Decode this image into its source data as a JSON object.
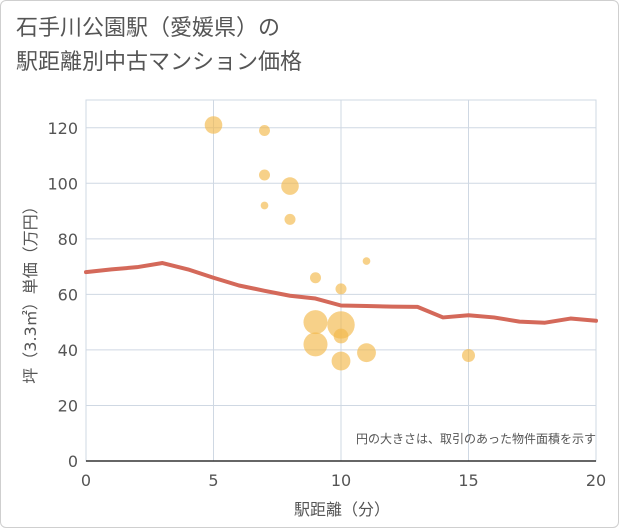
{
  "title_line1": "石手川公園駅（愛媛県）の",
  "title_line2": "駅距離別中古マンション価格",
  "chart_data": {
    "type": "scatter",
    "title": "石手川公園駅（愛媛県）の駅距離別中古マンション価格",
    "xlabel": "駅距離（分）",
    "ylabel": "坪（3.3㎡）単価（万円）",
    "xlim": [
      0,
      20
    ],
    "ylim": [
      0,
      130
    ],
    "xticks": [
      0,
      5,
      10,
      15,
      20
    ],
    "yticks": [
      0,
      20,
      40,
      60,
      80,
      100,
      120
    ],
    "grid": true,
    "note": "円の大きさは、取引のあった物件面積を示す",
    "colors": {
      "bubble": "#f3b94a",
      "line": "#d4695a"
    },
    "bubbles": [
      {
        "x": 5,
        "y": 121,
        "size": 3
      },
      {
        "x": 7,
        "y": 119,
        "size": 1
      },
      {
        "x": 7,
        "y": 103,
        "size": 1
      },
      {
        "x": 7,
        "y": 92,
        "size": 0.4
      },
      {
        "x": 8,
        "y": 99,
        "size": 3
      },
      {
        "x": 8,
        "y": 87,
        "size": 1
      },
      {
        "x": 9,
        "y": 66,
        "size": 1
      },
      {
        "x": 10,
        "y": 62,
        "size": 1
      },
      {
        "x": 11,
        "y": 72,
        "size": 0.4
      },
      {
        "x": 9,
        "y": 50,
        "size": 6
      },
      {
        "x": 10,
        "y": 49,
        "size": 8
      },
      {
        "x": 9,
        "y": 42,
        "size": 6
      },
      {
        "x": 10,
        "y": 45,
        "size": 2
      },
      {
        "x": 10,
        "y": 36,
        "size": 3.5
      },
      {
        "x": 11,
        "y": 39,
        "size": 3.5
      },
      {
        "x": 15,
        "y": 38,
        "size": 1.5
      }
    ],
    "trend_line": {
      "x": [
        0,
        1,
        2,
        3,
        4,
        5,
        6,
        7,
        8,
        9,
        10,
        11,
        12,
        13,
        14,
        15,
        16,
        17,
        18,
        19,
        20
      ],
      "y": [
        68,
        69,
        69.8,
        71.3,
        69,
        66,
        63.2,
        61.3,
        59.5,
        58.5,
        56,
        55.8,
        55.6,
        55.5,
        51.7,
        52.5,
        51.7,
        50.2,
        49.8,
        51.3,
        50.5
      ]
    }
  }
}
